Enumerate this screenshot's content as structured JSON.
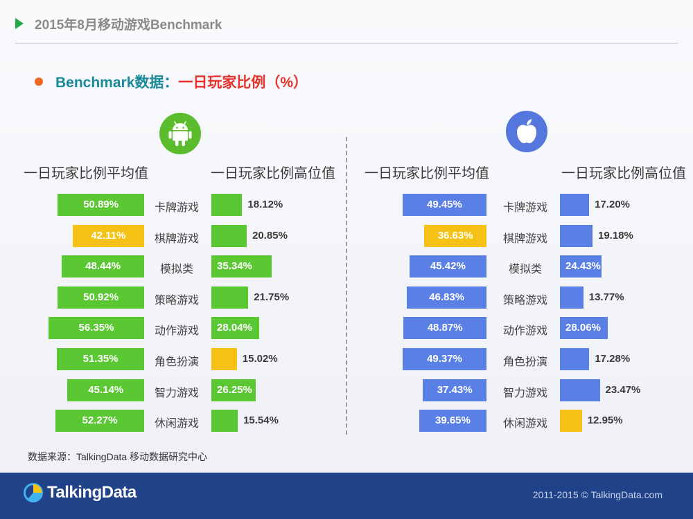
{
  "header": {
    "title": "2015年8月移动游戏Benchmark"
  },
  "section": {
    "title_prefix": "Benchmark数据：",
    "title_main": "一日玩家比例（%）"
  },
  "panels": {
    "android": {
      "avg_header": "一日玩家比例平均值",
      "high_header": "一日玩家比例高位值"
    },
    "ios": {
      "avg_header": "一日玩家比例平均值",
      "high_header": "一日玩家比例高位值"
    }
  },
  "source": "数据来源：TalkingData 移动数据研究中心",
  "footer": {
    "logo_text": "TalkingData",
    "copyright": "2011-2015 © TalkingData.com"
  },
  "colors": {
    "android_bar": "#5bc733",
    "ios_bar": "#5a80e6",
    "highlight": "#f5c114"
  },
  "chart_data": [
    {
      "type": "bar",
      "platform_icon": "android-icon",
      "categories": [
        "卡牌游戏",
        "棋牌游戏",
        "模拟类",
        "策略游戏",
        "动作游戏",
        "角色扮演",
        "智力游戏",
        "休闲游戏"
      ],
      "series": [
        {
          "name": "一日玩家比例平均值",
          "values": [
            50.89,
            42.11,
            48.44,
            50.92,
            56.35,
            51.35,
            45.14,
            52.27
          ],
          "labels": [
            "50.89%",
            "42.11%",
            "48.44%",
            "50.92%",
            "56.35%",
            "51.35%",
            "45.14%",
            "52.27%"
          ],
          "highlight_index": 1
        },
        {
          "name": "一日玩家比例高位值",
          "values": [
            18.12,
            20.85,
            35.34,
            21.75,
            28.04,
            15.02,
            26.25,
            15.54
          ],
          "labels": [
            "18.12%",
            "20.85%",
            "35.34%",
            "21.75%",
            "28.04%",
            "15.02%",
            "26.25%",
            "15.54%"
          ],
          "highlight_index": 5
        }
      ]
    },
    {
      "type": "bar",
      "platform_icon": "apple-icon",
      "categories": [
        "卡牌游戏",
        "棋牌游戏",
        "模拟类",
        "策略游戏",
        "动作游戏",
        "角色扮演",
        "智力游戏",
        "休闲游戏"
      ],
      "series": [
        {
          "name": "一日玩家比例平均值",
          "values": [
            49.45,
            36.63,
            45.42,
            46.83,
            48.87,
            49.37,
            37.43,
            39.65
          ],
          "labels": [
            "49.45%",
            "36.63%",
            "45.42%",
            "46.83%",
            "48.87%",
            "49.37%",
            "37.43%",
            "39.65%"
          ],
          "highlight_index": 1
        },
        {
          "name": "一日玩家比例高位值",
          "values": [
            17.2,
            19.18,
            24.43,
            13.77,
            28.06,
            17.28,
            23.47,
            12.95
          ],
          "labels": [
            "17.20%",
            "19.18%",
            "24.43%",
            "13.77%",
            "28.06%",
            "17.28%",
            "23.47%",
            "12.95%"
          ],
          "highlight_index": 7
        }
      ]
    }
  ]
}
